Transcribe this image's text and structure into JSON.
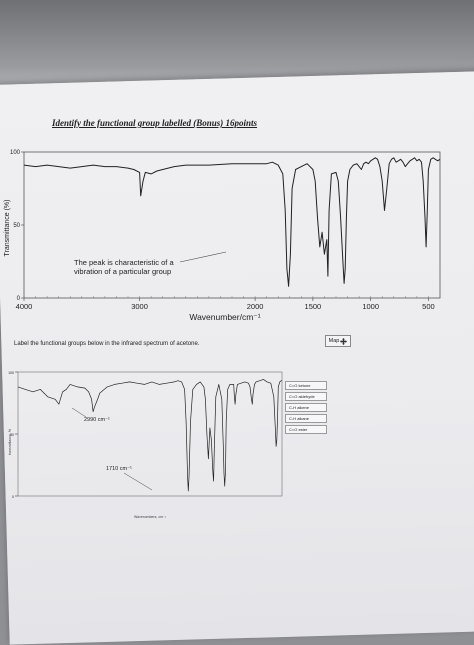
{
  "question1": {
    "title": "Identify the functional group labelled  (Bonus) 16points",
    "annotation_line1": "The peak is characteristic of a",
    "annotation_line2": "vibration of a particular group"
  },
  "question2": {
    "instruction": "Label the functional groups below in the infrared spectrum of acetone.",
    "map_button_label": "Map",
    "map_icon": "move-arrows-icon",
    "answer_options": [
      "C=O ketone",
      "C=O aldehyde",
      "C-H alkene",
      "C-H alkane",
      "C=O ester"
    ]
  },
  "chart_data": [
    {
      "type": "line",
      "title": "",
      "xlabel": "Wavenumber/cm⁻¹",
      "ylabel": "Transmittance (%)",
      "xlim": [
        4000,
        400
      ],
      "ylim": [
        0,
        100
      ],
      "x_tick_labels": [
        "4000",
        "3000",
        "2000",
        "1500",
        "1000",
        "500"
      ],
      "y_tick_labels": [
        "0",
        "50",
        "100"
      ],
      "grid": false,
      "series": [
        {
          "x": [
            4000,
            3900,
            3800,
            3700,
            3600,
            3500,
            3400,
            3300,
            3200,
            3100,
            3050,
            3000,
            2990,
            2970,
            2950,
            2900,
            2850,
            2800,
            2700,
            2600,
            2400,
            2200,
            2000,
            1900,
            1850,
            1800,
            1760,
            1740,
            1725,
            1710,
            1695,
            1680,
            1650,
            1600,
            1550,
            1500,
            1480,
            1460,
            1440,
            1420,
            1400,
            1380,
            1370,
            1360,
            1340,
            1300,
            1280,
            1260,
            1240,
            1230,
            1220,
            1210,
            1200,
            1180,
            1150,
            1120,
            1100,
            1080,
            1060,
            1040,
            1020,
            1000,
            980,
            960,
            940,
            920,
            900,
            880,
            860,
            840,
            820,
            800,
            780,
            760,
            740,
            720,
            700,
            680,
            660,
            640,
            620,
            600,
            580,
            560,
            545,
            530,
            520,
            510,
            500,
            480,
            460,
            440,
            420,
            400
          ],
          "y": [
            91,
            90,
            91,
            90,
            89,
            90,
            91,
            90,
            90,
            89,
            88,
            86,
            70,
            80,
            86,
            85,
            87,
            88,
            90,
            91,
            91,
            92,
            92,
            92,
            93,
            91,
            85,
            60,
            20,
            8,
            30,
            75,
            88,
            90,
            92,
            88,
            80,
            55,
            35,
            45,
            30,
            40,
            15,
            60,
            85,
            86,
            80,
            55,
            25,
            10,
            20,
            55,
            80,
            88,
            91,
            92,
            90,
            88,
            92,
            93,
            92,
            94,
            95,
            96,
            95,
            90,
            80,
            60,
            75,
            92,
            95,
            96,
            93,
            94,
            95,
            93,
            90,
            92,
            94,
            95,
            96,
            94,
            95,
            93,
            80,
            55,
            35,
            60,
            88,
            95,
            96,
            95,
            94,
            95
          ]
        }
      ]
    },
    {
      "type": "line",
      "title": "",
      "xlabel": "Wavenumbers, cm⁻¹",
      "ylabel": "transmittance, %",
      "xlim": [
        4000,
        450
      ],
      "ylim": [
        0,
        100
      ],
      "y_tick_labels": [
        "0",
        "50",
        "100"
      ],
      "grid": false,
      "annotations": [
        "2990 cm⁻¹",
        "1710 cm⁻¹"
      ],
      "series": [
        {
          "x": [
            4000,
            3900,
            3800,
            3700,
            3600,
            3500,
            3450,
            3400,
            3350,
            3300,
            3200,
            3100,
            3050,
            3010,
            2990,
            2970,
            2930,
            2900,
            2800,
            2700,
            2600,
            2500,
            2400,
            2300,
            2200,
            2100,
            2000,
            1900,
            1850,
            1800,
            1760,
            1740,
            1720,
            1710,
            1700,
            1680,
            1650,
            1600,
            1550,
            1500,
            1480,
            1460,
            1440,
            1420,
            1400,
            1380,
            1370,
            1360,
            1340,
            1300,
            1260,
            1240,
            1230,
            1220,
            1210,
            1200,
            1180,
            1150,
            1100,
            1090,
            1080,
            1070,
            1050,
            1000,
            950,
            900,
            880,
            860,
            850,
            840,
            820,
            800,
            750,
            700,
            650,
            600,
            560,
            540,
            530,
            520,
            510,
            500,
            480,
            460,
            450
          ],
          "y": [
            88,
            86,
            84,
            86,
            80,
            78,
            74,
            84,
            86,
            90,
            88,
            87,
            84,
            78,
            68,
            72,
            78,
            83,
            88,
            90,
            91,
            92,
            91,
            90,
            92,
            90,
            91,
            92,
            93,
            92,
            86,
            60,
            15,
            4,
            15,
            60,
            86,
            90,
            92,
            88,
            78,
            50,
            30,
            55,
            45,
            20,
            12,
            38,
            80,
            90,
            78,
            40,
            18,
            8,
            20,
            60,
            86,
            90,
            90,
            80,
            74,
            82,
            90,
            91,
            92,
            91,
            88,
            78,
            74,
            82,
            90,
            92,
            93,
            94,
            92,
            91,
            80,
            55,
            40,
            45,
            62,
            88,
            92,
            93,
            93
          ]
        }
      ]
    }
  ]
}
